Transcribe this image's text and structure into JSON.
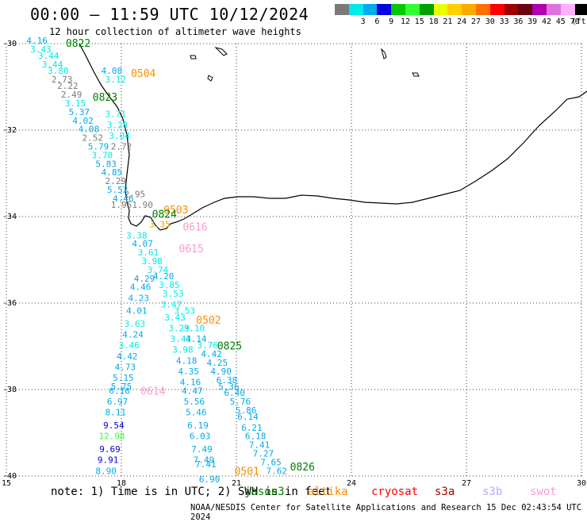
{
  "title": "00:00 – 11:59 UTC 10/12/2024",
  "subtitle": "12 hour collection of altimeter wave heights",
  "legend": {
    "swatches": [
      {
        "label": "",
        "color": "#7a7a7a"
      },
      {
        "label": "3",
        "color": "#00eaea"
      },
      {
        "label": "6",
        "color": "#00aaee"
      },
      {
        "label": "9",
        "color": "#0000e0"
      },
      {
        "label": "12",
        "color": "#00c800"
      },
      {
        "label": "15",
        "color": "#30ff30"
      },
      {
        "label": "18",
        "color": "#00a000"
      },
      {
        "label": "21",
        "color": "#eaff00"
      },
      {
        "label": "24",
        "color": "#ffd000"
      },
      {
        "label": "27",
        "color": "#ffa800"
      },
      {
        "label": "30",
        "color": "#ff7000"
      },
      {
        "label": "33",
        "color": "#ff0000"
      },
      {
        "label": "36",
        "color": "#a00000"
      },
      {
        "label": "39",
        "color": "#6a0010"
      },
      {
        "label": "42",
        "color": "#b000b0"
      },
      {
        "label": "45",
        "color": "#e070e0"
      },
      {
        "label": "70",
        "color": "#ffb0ff"
      },
      {
        "label": "(ft)",
        "color": "#000000"
      }
    ]
  },
  "axes": {
    "x_ticks": [
      "15",
      "18",
      "21",
      "24",
      "27",
      "30"
    ],
    "y_ticks": [
      "-30",
      "-32",
      "-34",
      "-36",
      "-38",
      "-40"
    ]
  },
  "note": "note: 1) Time is in UTC; 2) SWH is in feet",
  "missions": [
    {
      "name": "jason3",
      "color": "#008000"
    },
    {
      "name": "altika",
      "color": "#ff8c00"
    },
    {
      "name": "cryosat",
      "color": "#ff0000"
    },
    {
      "name": "s3a",
      "color": "#a00000"
    },
    {
      "name": "s3b",
      "color": "#b0b0ff"
    },
    {
      "name": "swot",
      "color": "#ff99cc"
    }
  ],
  "credit": "NOAA/NESDIS Center for Satellite Applications and Research    15 Dec 02:43:54 UTC 2024",
  "map_data": {
    "pass_labels": [
      {
        "text": "0822",
        "lon": 16.55,
        "lat": -30.0,
        "color": "#008000"
      },
      {
        "text": "0504",
        "lon": 18.25,
        "lat": -30.7,
        "color": "#ff8c00"
      },
      {
        "text": "0823",
        "lon": 17.25,
        "lat": -31.25,
        "color": "#008000"
      },
      {
        "text": "0503",
        "lon": 19.1,
        "lat": -33.85,
        "color": "#ff8c00"
      },
      {
        "text": "0824",
        "lon": 18.8,
        "lat": -33.95,
        "color": "#008000"
      },
      {
        "text": "0616",
        "lon": 19.6,
        "lat": -34.25,
        "color": "#ff99cc"
      },
      {
        "text": "0615",
        "lon": 19.5,
        "lat": -34.75,
        "color": "#ff99cc"
      },
      {
        "text": "0502",
        "lon": 19.95,
        "lat": -36.4,
        "color": "#ff8c00"
      },
      {
        "text": "0825",
        "lon": 20.5,
        "lat": -37.0,
        "color": "#008000"
      },
      {
        "text": "0614",
        "lon": 18.5,
        "lat": -38.05,
        "color": "#ff99cc"
      },
      {
        "text": "0501",
        "lon": 20.95,
        "lat": -39.9,
        "color": "#ff8c00"
      },
      {
        "text": "0826",
        "lon": 22.4,
        "lat": -39.8,
        "color": "#008000"
      }
    ],
    "values": [
      {
        "t": "4.16",
        "lon": 15.8,
        "lat": -30.0,
        "c": "#00aaee"
      },
      {
        "t": "3.43",
        "lon": 15.9,
        "lat": -30.2,
        "c": "#00eaea"
      },
      {
        "t": "3.44",
        "lon": 16.1,
        "lat": -30.35,
        "c": "#00eaea"
      },
      {
        "t": "3.44",
        "lon": 16.2,
        "lat": -30.55,
        "c": "#00eaea"
      },
      {
        "t": "3.80",
        "lon": 16.35,
        "lat": -30.7,
        "c": "#00eaea"
      },
      {
        "t": "2.73",
        "lon": 16.45,
        "lat": -30.9,
        "c": "#7a7a7a"
      },
      {
        "t": "2.22",
        "lon": 16.6,
        "lat": -31.05,
        "c": "#7a7a7a"
      },
      {
        "t": "2.49",
        "lon": 16.7,
        "lat": -31.25,
        "c": "#7a7a7a"
      },
      {
        "t": "5.37",
        "lon": 16.9,
        "lat": -31.65,
        "c": "#00aaee"
      },
      {
        "t": "4.02",
        "lon": 17.0,
        "lat": -31.85,
        "c": "#00aaee"
      },
      {
        "t": "4.08",
        "lon": 17.15,
        "lat": -32.05,
        "c": "#00aaee"
      },
      {
        "t": "2.52",
        "lon": 17.25,
        "lat": -32.25,
        "c": "#7a7a7a"
      },
      {
        "t": "5.79",
        "lon": 17.4,
        "lat": -32.45,
        "c": "#00aaee"
      },
      {
        "t": "3.70",
        "lon": 17.5,
        "lat": -32.65,
        "c": "#00eaea"
      },
      {
        "t": "5.83",
        "lon": 17.6,
        "lat": -32.85,
        "c": "#00aaee"
      },
      {
        "t": "4.85",
        "lon": 17.75,
        "lat": -33.05,
        "c": "#00aaee"
      },
      {
        "t": "2.29",
        "lon": 17.85,
        "lat": -33.25,
        "c": "#7a7a7a"
      },
      {
        "t": "5.52",
        "lon": 17.9,
        "lat": -33.45,
        "c": "#00aaee"
      },
      {
        "t": "4.46",
        "lon": 18.05,
        "lat": -33.65,
        "c": "#00aaee"
      },
      {
        "t": "4.08",
        "lon": 17.75,
        "lat": -30.7,
        "c": "#00aaee"
      },
      {
        "t": "3.12",
        "lon": 17.85,
        "lat": -30.9,
        "c": "#00eaea"
      },
      {
        "t": "3.15",
        "lon": 16.8,
        "lat": -31.45,
        "c": "#00eaea"
      },
      {
        "t": "3.71",
        "lon": 17.85,
        "lat": -31.7,
        "c": "#00eaea"
      },
      {
        "t": "3.28",
        "lon": 17.9,
        "lat": -31.95,
        "c": "#00eaea"
      },
      {
        "t": "3.04",
        "lon": 17.95,
        "lat": -32.2,
        "c": "#00eaea"
      },
      {
        "t": "2.72",
        "lon": 18.0,
        "lat": -32.45,
        "c": "#7a7a7a"
      },
      {
        "t": "2.95",
        "lon": 18.35,
        "lat": -33.55,
        "c": "#7a7a7a"
      },
      {
        "t": "1.90",
        "lon": 18.55,
        "lat": -33.8,
        "c": "#7a7a7a"
      },
      {
        "t": "1.95",
        "lon": 18.0,
        "lat": -33.8,
        "c": "#7a7a7a"
      },
      {
        "t": "3.35",
        "lon": 19.0,
        "lat": -34.25,
        "c": "#eaa000"
      },
      {
        "t": "3.38",
        "lon": 18.4,
        "lat": -34.5,
        "c": "#00eaea"
      },
      {
        "t": "4.07",
        "lon": 18.55,
        "lat": -34.7,
        "c": "#00aaee"
      },
      {
        "t": "3.61",
        "lon": 18.7,
        "lat": -34.9,
        "c": "#00eaea"
      },
      {
        "t": "3.98",
        "lon": 18.8,
        "lat": -35.1,
        "c": "#00eaea"
      },
      {
        "t": "3.74",
        "lon": 18.95,
        "lat": -35.3,
        "c": "#00eaea"
      },
      {
        "t": "4.29",
        "lon": 18.6,
        "lat": -35.5,
        "c": "#00aaee"
      },
      {
        "t": "4.20",
        "lon": 19.1,
        "lat": -35.45,
        "c": "#00aaee"
      },
      {
        "t": "3.85",
        "lon": 19.25,
        "lat": -35.65,
        "c": "#00eaea"
      },
      {
        "t": "4.46",
        "lon": 18.5,
        "lat": -35.7,
        "c": "#00aaee"
      },
      {
        "t": "3.53",
        "lon": 19.35,
        "lat": -35.85,
        "c": "#00eaea"
      },
      {
        "t": "4.23",
        "lon": 18.45,
        "lat": -35.95,
        "c": "#00aaee"
      },
      {
        "t": "3.47",
        "lon": 19.3,
        "lat": -36.1,
        "c": "#00eaea"
      },
      {
        "t": "3.53",
        "lon": 19.65,
        "lat": -36.25,
        "c": "#00eaea"
      },
      {
        "t": "4.01",
        "lon": 18.4,
        "lat": -36.25,
        "c": "#00aaee"
      },
      {
        "t": "3.43",
        "lon": 19.4,
        "lat": -36.4,
        "c": "#00eaea"
      },
      {
        "t": "3.63",
        "lon": 18.35,
        "lat": -36.55,
        "c": "#00eaea"
      },
      {
        "t": "3.29",
        "lon": 19.5,
        "lat": -36.65,
        "c": "#00eaea"
      },
      {
        "t": "3.10",
        "lon": 19.9,
        "lat": -36.65,
        "c": "#00eaea"
      },
      {
        "t": "4.24",
        "lon": 18.3,
        "lat": -36.8,
        "c": "#00aaee"
      },
      {
        "t": "3.43",
        "lon": 19.55,
        "lat": -36.9,
        "c": "#00eaea"
      },
      {
        "t": "4.14",
        "lon": 19.95,
        "lat": -36.9,
        "c": "#00aaee"
      },
      {
        "t": "3.46",
        "lon": 18.2,
        "lat": -37.05,
        "c": "#00eaea"
      },
      {
        "t": "3.76",
        "lon": 20.25,
        "lat": -37.05,
        "c": "#00eaea"
      },
      {
        "t": "3.98",
        "lon": 19.6,
        "lat": -37.15,
        "c": "#00eaea"
      },
      {
        "t": "4.42",
        "lon": 20.35,
        "lat": -37.25,
        "c": "#00aaee"
      },
      {
        "t": "4.42",
        "lon": 18.15,
        "lat": -37.3,
        "c": "#00aaee"
      },
      {
        "t": "4.18",
        "lon": 19.7,
        "lat": -37.4,
        "c": "#00aaee"
      },
      {
        "t": "4.25",
        "lon": 20.5,
        "lat": -37.45,
        "c": "#00aaee"
      },
      {
        "t": "4.73",
        "lon": 18.1,
        "lat": -37.55,
        "c": "#00aaee"
      },
      {
        "t": "4.35",
        "lon": 19.75,
        "lat": -37.65,
        "c": "#00aaee"
      },
      {
        "t": "4.90",
        "lon": 20.6,
        "lat": -37.65,
        "c": "#00aaee"
      },
      {
        "t": "5.15",
        "lon": 18.05,
        "lat": -37.8,
        "c": "#00aaee"
      },
      {
        "t": "6.38",
        "lon": 20.75,
        "lat": -37.85,
        "c": "#00aaee"
      },
      {
        "t": "4.16",
        "lon": 19.8,
        "lat": -37.9,
        "c": "#00aaee"
      },
      {
        "t": "5.75",
        "lon": 18.0,
        "lat": -38.0,
        "c": "#00aaee"
      },
      {
        "t": "5.36",
        "lon": 20.8,
        "lat": -38.0,
        "c": "#00aaee"
      },
      {
        "t": "6.16",
        "lon": 17.95,
        "lat": -38.1,
        "c": "#00aaee"
      },
      {
        "t": "4.47",
        "lon": 19.85,
        "lat": -38.1,
        "c": "#00aaee"
      },
      {
        "t": "6.40",
        "lon": 20.95,
        "lat": -38.15,
        "c": "#00aaee"
      },
      {
        "t": "6.97",
        "lon": 17.9,
        "lat": -38.35,
        "c": "#00aaee"
      },
      {
        "t": "5.56",
        "lon": 19.9,
        "lat": -38.35,
        "c": "#00aaee"
      },
      {
        "t": "5.76",
        "lon": 21.1,
        "lat": -38.35,
        "c": "#00aaee"
      },
      {
        "t": "5.86",
        "lon": 21.25,
        "lat": -38.55,
        "c": "#00aaee"
      },
      {
        "t": "8.11",
        "lon": 17.85,
        "lat": -38.6,
        "c": "#00aaee"
      },
      {
        "t": "5.46",
        "lon": 19.95,
        "lat": -38.6,
        "c": "#00aaee"
      },
      {
        "t": "6.14",
        "lon": 21.3,
        "lat": -38.7,
        "c": "#00aaee"
      },
      {
        "t": "9.54",
        "lon": 17.8,
        "lat": -38.9,
        "c": "#0000e0"
      },
      {
        "t": "6.19",
        "lon": 20.0,
        "lat": -38.9,
        "c": "#00aaee"
      },
      {
        "t": "6.21",
        "lon": 21.4,
        "lat": -38.95,
        "c": "#00aaee"
      },
      {
        "t": "12.98",
        "lon": 17.75,
        "lat": -39.15,
        "c": "#30ff30"
      },
      {
        "t": "6.03",
        "lon": 20.05,
        "lat": -39.15,
        "c": "#00aaee"
      },
      {
        "t": "6.18",
        "lon": 21.5,
        "lat": -39.15,
        "c": "#00aaee"
      },
      {
        "t": "7.41",
        "lon": 21.6,
        "lat": -39.35,
        "c": "#00aaee"
      },
      {
        "t": "9.69",
        "lon": 17.7,
        "lat": -39.45,
        "c": "#0000e0"
      },
      {
        "t": "7.49",
        "lon": 20.1,
        "lat": -39.45,
        "c": "#00aaee"
      },
      {
        "t": "7.27",
        "lon": 21.7,
        "lat": -39.55,
        "c": "#00aaee"
      },
      {
        "t": "9.91",
        "lon": 17.65,
        "lat": -39.7,
        "c": "#0000e0"
      },
      {
        "t": "7.49",
        "lon": 20.15,
        "lat": -39.7,
        "c": "#00aaee"
      },
      {
        "t": "7.65",
        "lon": 21.9,
        "lat": -39.75,
        "c": "#00aaee"
      },
      {
        "t": "7.41",
        "lon": 20.2,
        "lat": -39.8,
        "c": "#00aaee"
      },
      {
        "t": "7.62",
        "lon": 22.05,
        "lat": -39.95,
        "c": "#00aaee"
      },
      {
        "t": "8.90",
        "lon": 17.6,
        "lat": -39.95,
        "c": "#00aaee"
      },
      {
        "t": "6.90",
        "lon": 20.3,
        "lat": -40.15,
        "c": "#00aaee"
      }
    ]
  }
}
